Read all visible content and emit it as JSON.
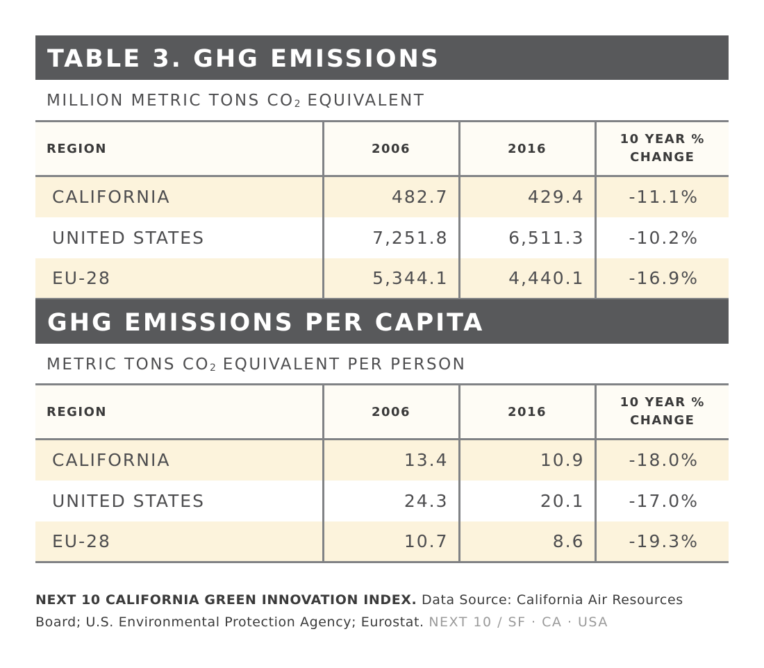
{
  "tables": [
    {
      "title": "TABLE 3. GHG EMISSIONS",
      "subtitle_pre": "MILLION METRIC TONS CO",
      "subtitle_sub": "2",
      "subtitle_post": " EQUIVALENT",
      "headers": {
        "region": "REGION",
        "y1": "2006",
        "y2": "2016",
        "change_l1": "10 YEAR %",
        "change_l2": "CHANGE"
      },
      "rows": [
        {
          "region": "CALIFORNIA",
          "y1": "482.7",
          "y2": "429.4",
          "change": "-11.1%"
        },
        {
          "region": "UNITED STATES",
          "y1": "7,251.8",
          "y2": "6,511.3",
          "change": "-10.2%"
        },
        {
          "region": "EU-28",
          "y1": "5,344.1",
          "y2": "4,440.1",
          "change": "-16.9%"
        }
      ]
    },
    {
      "title": "GHG EMISSIONS PER CAPITA",
      "subtitle_pre": "METRIC TONS CO",
      "subtitle_sub": "2",
      "subtitle_post": " EQUIVALENT PER PERSON",
      "headers": {
        "region": "REGION",
        "y1": "2006",
        "y2": "2016",
        "change_l1": "10 YEAR %",
        "change_l2": "CHANGE"
      },
      "rows": [
        {
          "region": "CALIFORNIA",
          "y1": "13.4",
          "y2": "10.9",
          "change": "-18.0%"
        },
        {
          "region": "UNITED STATES",
          "y1": "24.3",
          "y2": "20.1",
          "change": "-17.0%"
        },
        {
          "region": "EU-28",
          "y1": "10.7",
          "y2": "8.6",
          "change": "-19.3%"
        }
      ]
    }
  ],
  "footer": {
    "bold": "NEXT 10 CALIFORNIA GREEN INNOVATION INDEX.",
    "source": " Data Source: California Air Resources Board; U.S. Environmental Protection Agency; Eurostat. ",
    "brand": "NEXT 10 / SF · CA · USA"
  },
  "colors": {
    "banner": "#58595b",
    "highlight_row": "#fcf3dc",
    "header_row": "#fefcf5",
    "rule": "#808285"
  }
}
